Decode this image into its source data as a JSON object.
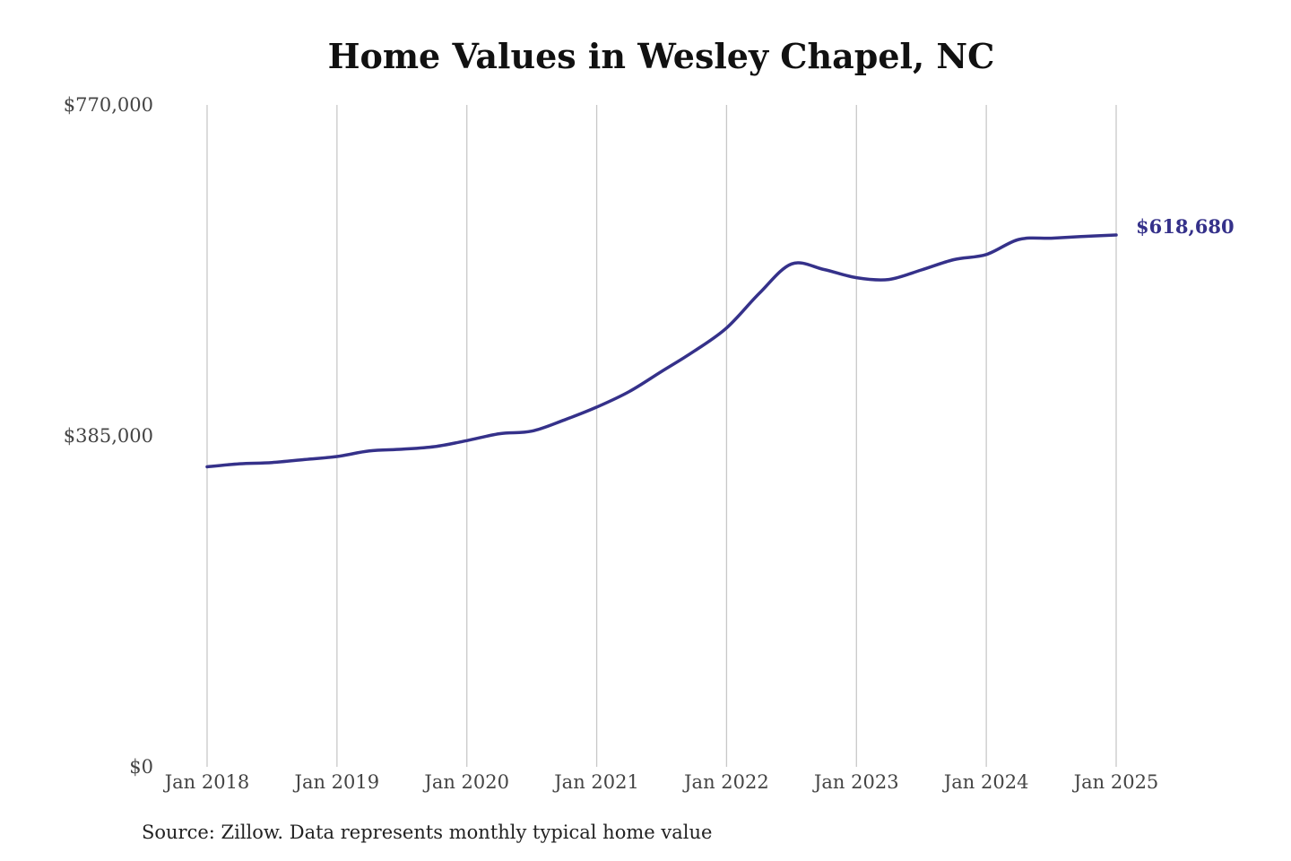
{
  "chart_data": {
    "type": "line",
    "title": "Home Values in Wesley Chapel, NC",
    "source": "Source: Zillow. Data represents monthly typical home value",
    "ylim": [
      0,
      770000
    ],
    "y_ticks": [
      {
        "value": 0,
        "label": "$0"
      },
      {
        "value": 385000,
        "label": "$385,000"
      },
      {
        "value": 770000,
        "label": "$770,000"
      }
    ],
    "x_ticks": [
      {
        "value": "2018-01",
        "label": "Jan 2018"
      },
      {
        "value": "2019-01",
        "label": "Jan 2019"
      },
      {
        "value": "2020-01",
        "label": "Jan 2020"
      },
      {
        "value": "2021-01",
        "label": "Jan 2021"
      },
      {
        "value": "2022-01",
        "label": "Jan 2022"
      },
      {
        "value": "2023-01",
        "label": "Jan 2023"
      },
      {
        "value": "2024-01",
        "label": "Jan 2024"
      },
      {
        "value": "2025-01",
        "label": "Jan 2025"
      }
    ],
    "grid": {
      "vertical": true,
      "horizontal": false
    },
    "line_color": "#35318a",
    "grid_color": "#c8c8c8",
    "end_label": "$618,680",
    "series": [
      {
        "points": [
          {
            "x": "2018-01",
            "y": 349000
          },
          {
            "x": "2018-04",
            "y": 352500
          },
          {
            "x": "2018-07",
            "y": 354000
          },
          {
            "x": "2018-10",
            "y": 357500
          },
          {
            "x": "2019-01",
            "y": 361000
          },
          {
            "x": "2019-04",
            "y": 367500
          },
          {
            "x": "2019-07",
            "y": 369500
          },
          {
            "x": "2019-10",
            "y": 372500
          },
          {
            "x": "2020-01",
            "y": 379500
          },
          {
            "x": "2020-04",
            "y": 387500
          },
          {
            "x": "2020-07",
            "y": 390500
          },
          {
            "x": "2020-10",
            "y": 403500
          },
          {
            "x": "2021-01",
            "y": 418500
          },
          {
            "x": "2021-04",
            "y": 436500
          },
          {
            "x": "2021-07",
            "y": 460000
          },
          {
            "x": "2021-10",
            "y": 483500
          },
          {
            "x": "2022-01",
            "y": 510500
          },
          {
            "x": "2022-04",
            "y": 550500
          },
          {
            "x": "2022-07",
            "y": 585000
          },
          {
            "x": "2022-10",
            "y": 578500
          },
          {
            "x": "2023-01",
            "y": 569000
          },
          {
            "x": "2023-04",
            "y": 567000
          },
          {
            "x": "2023-07",
            "y": 578000
          },
          {
            "x": "2023-10",
            "y": 590000
          },
          {
            "x": "2024-01",
            "y": 596000
          },
          {
            "x": "2024-04",
            "y": 613500
          },
          {
            "x": "2024-07",
            "y": 615000
          },
          {
            "x": "2024-10",
            "y": 617000
          },
          {
            "x": "2025-01",
            "y": 618680
          }
        ]
      }
    ]
  }
}
